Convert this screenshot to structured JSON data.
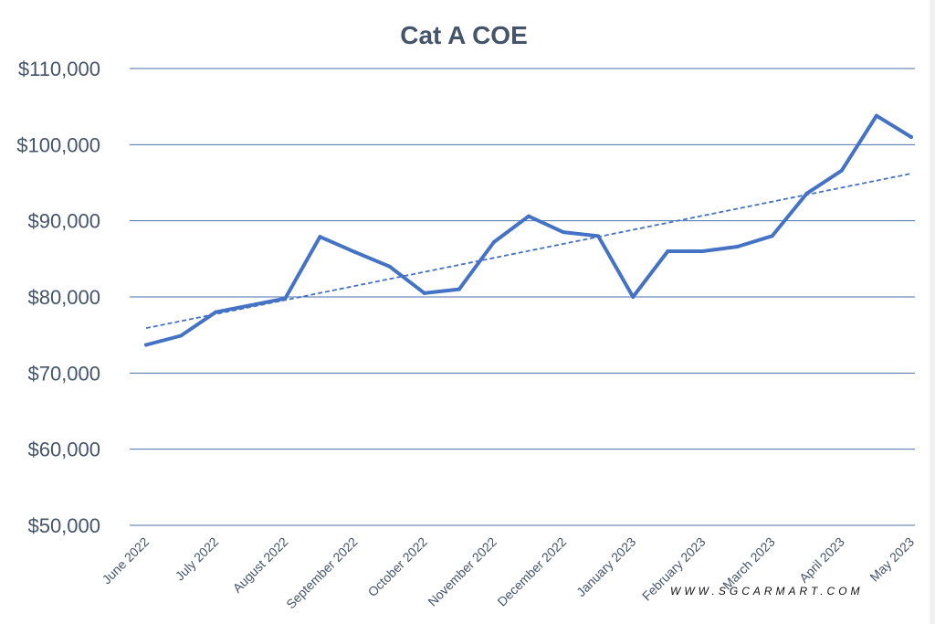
{
  "chart_data": {
    "type": "line",
    "title": "Cat A COE",
    "xlabel": "",
    "ylabel": "",
    "ylim": [
      50000,
      110000
    ],
    "yticks": [
      50000,
      60000,
      70000,
      80000,
      90000,
      100000,
      110000
    ],
    "ytick_labels": [
      "$50,000",
      "$60,000",
      "$70,000",
      "$80,000",
      "$90,000",
      "$100,000",
      "$110,000"
    ],
    "categories": [
      "June 2022",
      "July 2022",
      "August 2022",
      "September 2022",
      "October 2022",
      "November 2022",
      "December 2022",
      "January 2023",
      "February 2023",
      "March 2023",
      "April 2023",
      "May 2023"
    ],
    "x": [
      0,
      0.5,
      1,
      1.5,
      2,
      2.5,
      3,
      3.5,
      4,
      4.5,
      5,
      5.5,
      6,
      6.5,
      7,
      7.5,
      8,
      8.5,
      9,
      9.5,
      10,
      10.5,
      11
    ],
    "series": [
      {
        "name": "Cat A COE",
        "values": [
          73700,
          74900,
          78000,
          78900,
          79800,
          87900,
          85900,
          84000,
          80500,
          81000,
          87200,
          90600,
          88500,
          88000,
          80000,
          86000,
          86000,
          86600,
          88000,
          93600,
          96600,
          103800,
          101000
        ],
        "color": "#4472C4"
      }
    ],
    "trendline": {
      "type": "linear",
      "start": 75900,
      "end": 96200,
      "style": "dashed",
      "color": "#4472C4"
    },
    "grid": true,
    "legend": "none"
  },
  "watermark": "WWW.SGCARMART.COM"
}
